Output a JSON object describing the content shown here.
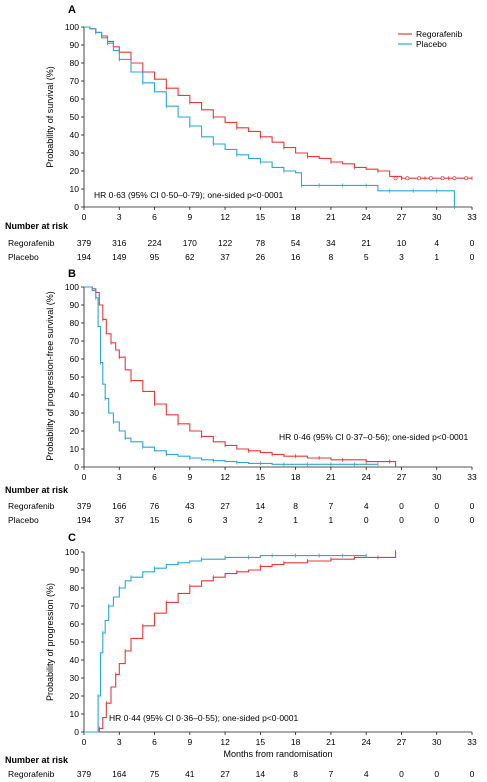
{
  "colors": {
    "regorafenib": "#e8393a",
    "placebo": "#2aa8d6",
    "axis": "#1a1a1a"
  },
  "x_ticks": [
    "0",
    "3",
    "6",
    "9",
    "12",
    "15",
    "18",
    "21",
    "24",
    "27",
    "30",
    "33"
  ],
  "y_ticks": [
    "0",
    "10",
    "20",
    "30",
    "40",
    "50",
    "60",
    "70",
    "80",
    "90",
    "100"
  ],
  "legend": {
    "regorafenib": "Regorafenib",
    "placebo": "Placebo"
  },
  "risk": {
    "title": "Number at risk",
    "regorafenib_label": "Regorafenib",
    "placebo_label": "Placebo"
  },
  "chart_data": [
    {
      "panel": "A",
      "type": "line",
      "title": "",
      "ylabel": "Probability of survival (%)",
      "xlabel": "",
      "xlim": [
        0,
        33
      ],
      "ylim": [
        0,
        100
      ],
      "legend_position": "top-right",
      "annotation": "HR 0·63 (95% CI 0·50–0·79); one-sided p<0·0001",
      "series": [
        {
          "name": "Regorafenib",
          "color": "#e8393a",
          "points": [
            [
              0,
              100
            ],
            [
              0.5,
              99
            ],
            [
              1,
              97
            ],
            [
              1.5,
              95
            ],
            [
              2,
              92
            ],
            [
              2.5,
              89
            ],
            [
              3,
              86
            ],
            [
              4,
              80
            ],
            [
              5,
              75
            ],
            [
              6,
              71
            ],
            [
              7,
              66
            ],
            [
              8,
              62
            ],
            [
              9,
              58
            ],
            [
              10,
              54
            ],
            [
              11,
              50
            ],
            [
              12,
              47
            ],
            [
              13,
              44
            ],
            [
              14,
              42
            ],
            [
              15,
              39
            ],
            [
              16,
              36
            ],
            [
              17,
              33
            ],
            [
              18,
              30
            ],
            [
              19,
              28
            ],
            [
              20,
              27
            ],
            [
              21,
              25
            ],
            [
              22,
              24
            ],
            [
              23,
              22
            ],
            [
              24,
              21
            ],
            [
              25,
              20
            ],
            [
              26,
              17
            ],
            [
              27,
              16
            ],
            [
              28,
              16
            ],
            [
              29,
              16
            ],
            [
              30,
              16
            ],
            [
              31,
              16
            ],
            [
              32,
              16
            ],
            [
              33,
              16
            ]
          ]
        },
        {
          "name": "Placebo",
          "color": "#2aa8d6",
          "points": [
            [
              0,
              100
            ],
            [
              0.5,
              99
            ],
            [
              1,
              97
            ],
            [
              1.5,
              94
            ],
            [
              2,
              91
            ],
            [
              2.5,
              87
            ],
            [
              3,
              82
            ],
            [
              4,
              75
            ],
            [
              5,
              69
            ],
            [
              6,
              64
            ],
            [
              7,
              56
            ],
            [
              8,
              50
            ],
            [
              9,
              45
            ],
            [
              10,
              39
            ],
            [
              11,
              35
            ],
            [
              12,
              32
            ],
            [
              13,
              29
            ],
            [
              14,
              27
            ],
            [
              15,
              25
            ],
            [
              16,
              22
            ],
            [
              17,
              20
            ],
            [
              18,
              19
            ],
            [
              18.5,
              12
            ],
            [
              19,
              12
            ],
            [
              20,
              12
            ],
            [
              21,
              12
            ],
            [
              22,
              12
            ],
            [
              23,
              12
            ],
            [
              24,
              12
            ],
            [
              25,
              9
            ],
            [
              26,
              9
            ],
            [
              27,
              9
            ],
            [
              28,
              9
            ],
            [
              29,
              9
            ],
            [
              30,
              9
            ],
            [
              31,
              9
            ],
            [
              31.5,
              0
            ]
          ]
        }
      ],
      "at_risk": {
        "regorafenib": [
          "379",
          "316",
          "224",
          "170",
          "122",
          "78",
          "54",
          "34",
          "21",
          "10",
          "4",
          "0"
        ],
        "placebo": [
          "194",
          "149",
          "95",
          "62",
          "37",
          "26",
          "16",
          "8",
          "5",
          "3",
          "1",
          "0"
        ]
      }
    },
    {
      "panel": "B",
      "type": "line",
      "title": "",
      "ylabel": "Probability of progression-free survival (%)",
      "xlabel": "",
      "xlim": [
        0,
        33
      ],
      "ylim": [
        0,
        100
      ],
      "annotation": "HR 0·46 (95% CI 0·37–0·56); one-sided p<0·0001",
      "series": [
        {
          "name": "Regorafenib",
          "color": "#e8393a",
          "points": [
            [
              0,
              100
            ],
            [
              0.7,
              99
            ],
            [
              1,
              97
            ],
            [
              1.3,
              90
            ],
            [
              1.6,
              82
            ],
            [
              1.9,
              74
            ],
            [
              2.3,
              69
            ],
            [
              2.7,
              65
            ],
            [
              3,
              61
            ],
            [
              3.5,
              54
            ],
            [
              4,
              48
            ],
            [
              5,
              42
            ],
            [
              6,
              35
            ],
            [
              7,
              29
            ],
            [
              8,
              24
            ],
            [
              9,
              20
            ],
            [
              10,
              17
            ],
            [
              11,
              14
            ],
            [
              12,
              12
            ],
            [
              13,
              10
            ],
            [
              14,
              9
            ],
            [
              15,
              8
            ],
            [
              16,
              7
            ],
            [
              17,
              6
            ],
            [
              18,
              6
            ],
            [
              19,
              5
            ],
            [
              20,
              5
            ],
            [
              21,
              4
            ],
            [
              22,
              4
            ],
            [
              23,
              4
            ],
            [
              24,
              3
            ],
            [
              25,
              3
            ],
            [
              26,
              3
            ],
            [
              26.5,
              0
            ]
          ]
        },
        {
          "name": "Placebo",
          "color": "#2aa8d6",
          "points": [
            [
              0,
              100
            ],
            [
              0.7,
              98
            ],
            [
              1,
              94
            ],
            [
              1.2,
              78
            ],
            [
              1.4,
              58
            ],
            [
              1.6,
              46
            ],
            [
              1.8,
              38
            ],
            [
              2.1,
              30
            ],
            [
              2.5,
              25
            ],
            [
              3,
              20
            ],
            [
              3.5,
              16
            ],
            [
              4,
              14
            ],
            [
              5,
              11
            ],
            [
              6,
              9
            ],
            [
              7,
              7
            ],
            [
              8,
              6
            ],
            [
              9,
              5
            ],
            [
              10,
              4
            ],
            [
              11,
              3.5
            ],
            [
              12,
              3
            ],
            [
              13,
              2.5
            ],
            [
              14,
              2
            ],
            [
              15,
              2
            ],
            [
              16,
              1.5
            ],
            [
              17,
              1.5
            ],
            [
              18,
              1.5
            ],
            [
              19,
              1.5
            ],
            [
              20,
              1.5
            ],
            [
              21,
              1.5
            ],
            [
              22,
              1.5
            ],
            [
              23,
              1.5
            ],
            [
              24,
              1.5
            ],
            [
              25,
              1.5
            ]
          ]
        }
      ],
      "at_risk": {
        "regorafenib": [
          "379",
          "166",
          "76",
          "43",
          "27",
          "14",
          "8",
          "7",
          "4",
          "0",
          "0",
          "0"
        ],
        "placebo": [
          "194",
          "37",
          "15",
          "6",
          "3",
          "2",
          "1",
          "1",
          "0",
          "0",
          "0",
          "0"
        ]
      }
    },
    {
      "panel": "C",
      "type": "line",
      "title": "",
      "ylabel": "Probability of progression (%)",
      "xlabel": "Months from randomisation",
      "xlim": [
        0,
        33
      ],
      "ylim": [
        0,
        100
      ],
      "annotation": "HR 0·44 (95% CI 0·36–0·55); one-sided p<0·0001",
      "series": [
        {
          "name": "Regorafenib",
          "color": "#e8393a",
          "points": [
            [
              0,
              0
            ],
            [
              1,
              0
            ],
            [
              1.3,
              2
            ],
            [
              1.6,
              8
            ],
            [
              1.9,
              16
            ],
            [
              2.3,
              25
            ],
            [
              2.7,
              32
            ],
            [
              3,
              38
            ],
            [
              3.5,
              45
            ],
            [
              4,
              52
            ],
            [
              5,
              59
            ],
            [
              6,
              66
            ],
            [
              7,
              72
            ],
            [
              8,
              77
            ],
            [
              9,
              81
            ],
            [
              10,
              84
            ],
            [
              11,
              86
            ],
            [
              12,
              88
            ],
            [
              13,
              89
            ],
            [
              14,
              90
            ],
            [
              15,
              92
            ],
            [
              16,
              93
            ],
            [
              17,
              94
            ],
            [
              18,
              94
            ],
            [
              19,
              95
            ],
            [
              20,
              95
            ],
            [
              21,
              96
            ],
            [
              22,
              96
            ],
            [
              23,
              97
            ],
            [
              24,
              97
            ],
            [
              25,
              97
            ],
            [
              26,
              97
            ],
            [
              26.5,
              100
            ]
          ]
        },
        {
          "name": "Placebo",
          "color": "#2aa8d6",
          "points": [
            [
              0,
              0
            ],
            [
              1,
              0
            ],
            [
              1.2,
              20
            ],
            [
              1.4,
              44
            ],
            [
              1.6,
              55
            ],
            [
              1.8,
              62
            ],
            [
              2.1,
              70
            ],
            [
              2.5,
              75
            ],
            [
              3,
              80
            ],
            [
              3.5,
              84
            ],
            [
              4,
              86
            ],
            [
              5,
              89
            ],
            [
              6,
              91
            ],
            [
              7,
              93
            ],
            [
              8,
              94
            ],
            [
              9,
              95
            ],
            [
              10,
              96
            ],
            [
              11,
              96
            ],
            [
              12,
              97
            ],
            [
              13,
              97
            ],
            [
              14,
              97
            ],
            [
              15,
              98
            ],
            [
              16,
              98
            ],
            [
              17,
              98
            ],
            [
              18,
              98
            ],
            [
              19,
              98
            ],
            [
              20,
              98
            ],
            [
              21,
              98
            ],
            [
              22,
              98
            ],
            [
              23,
              98
            ],
            [
              24,
              98
            ]
          ]
        }
      ],
      "at_risk": {
        "regorafenib": [
          "379",
          "164",
          "75",
          "41",
          "27",
          "14",
          "8",
          "7",
          "4",
          "0",
          "0",
          "0"
        ]
      }
    }
  ]
}
